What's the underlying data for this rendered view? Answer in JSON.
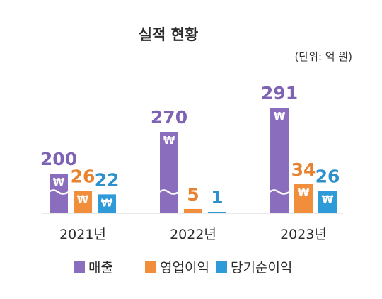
{
  "chart_data": {
    "type": "bar",
    "title": "실적 현황",
    "unit_label": "(단위: 억 원)",
    "categories": [
      "2021년",
      "2022년",
      "2023년"
    ],
    "series": [
      {
        "name": "매출",
        "values": [
          200,
          270,
          291
        ],
        "color": "#8b6dbd"
      },
      {
        "name": "영업이익",
        "values": [
          26,
          5,
          34
        ],
        "color": "#f08e3c"
      },
      {
        "name": "당기순이익",
        "values": [
          22,
          1,
          26
        ],
        "color": "#2f9ad8"
      }
    ],
    "value_labels": [
      [
        "200",
        "270",
        "291"
      ],
      [
        "26",
        "5",
        "34"
      ],
      [
        "22",
        "1",
        "26"
      ]
    ],
    "axis_break": true,
    "currency_icon": "won-sign-icon",
    "legend_position": "bottom"
  }
}
